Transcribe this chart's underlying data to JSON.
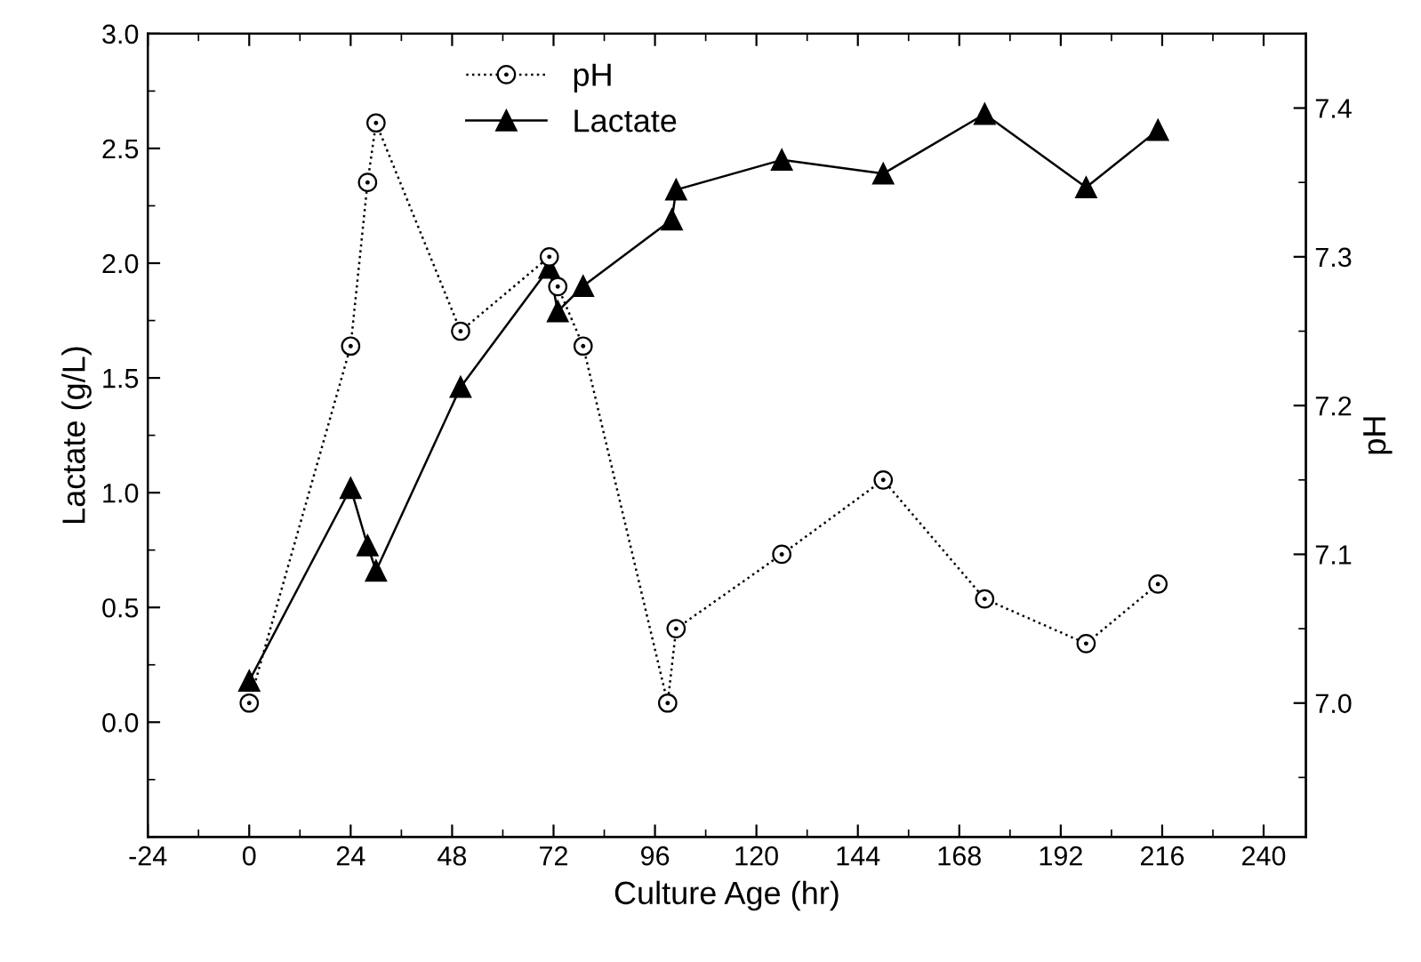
{
  "chart_data": {
    "type": "line",
    "xlabel": "Culture Age (hr)",
    "ylabel": "Lactate (g/L)",
    "y2label": "pH",
    "xlim": [
      -24,
      250
    ],
    "xticks": [
      -24,
      0,
      24,
      48,
      72,
      96,
      120,
      144,
      168,
      192,
      216,
      240
    ],
    "ylim": [
      -0.5,
      3.0
    ],
    "yticks": [
      {
        "value": 0,
        "label": "0.0"
      },
      0.5,
      {
        "value": 1,
        "label": "1.0"
      },
      1.5,
      {
        "value": 2,
        "label": "2.0"
      },
      2.5,
      {
        "value": 3,
        "label": "3.0"
      }
    ],
    "y2lim": [
      6.91,
      7.45
    ],
    "y2ticks": [
      {
        "value": 7,
        "label": "7.0"
      },
      7.1,
      7.2,
      7.3,
      7.4
    ],
    "legend": "top left",
    "grid": false,
    "series": [
      {
        "name": "pH",
        "color": "#000000",
        "axis": "y2",
        "marker": "circle",
        "line_style": "dotted",
        "x": [
          0,
          24,
          28,
          30,
          50,
          71,
          73,
          79,
          99,
          101,
          126,
          150,
          174,
          198,
          215
        ],
        "values": [
          7.0,
          7.24,
          7.35,
          7.39,
          7.25,
          7.3,
          7.28,
          7.24,
          7.0,
          7.05,
          7.1,
          7.15,
          7.07,
          7.04,
          7.08
        ]
      },
      {
        "name": "Lactate",
        "color": "#000000",
        "marker": "triangle",
        "line_style": "solid",
        "x": [
          0,
          24,
          28,
          30,
          50,
          71,
          73,
          79,
          100,
          101,
          126,
          150,
          174,
          198,
          215
        ],
        "values": [
          0.18,
          1.02,
          0.77,
          0.66,
          1.46,
          1.98,
          1.79,
          1.9,
          2.19,
          2.32,
          2.45,
          2.39,
          2.65,
          2.33,
          2.58
        ]
      }
    ]
  }
}
